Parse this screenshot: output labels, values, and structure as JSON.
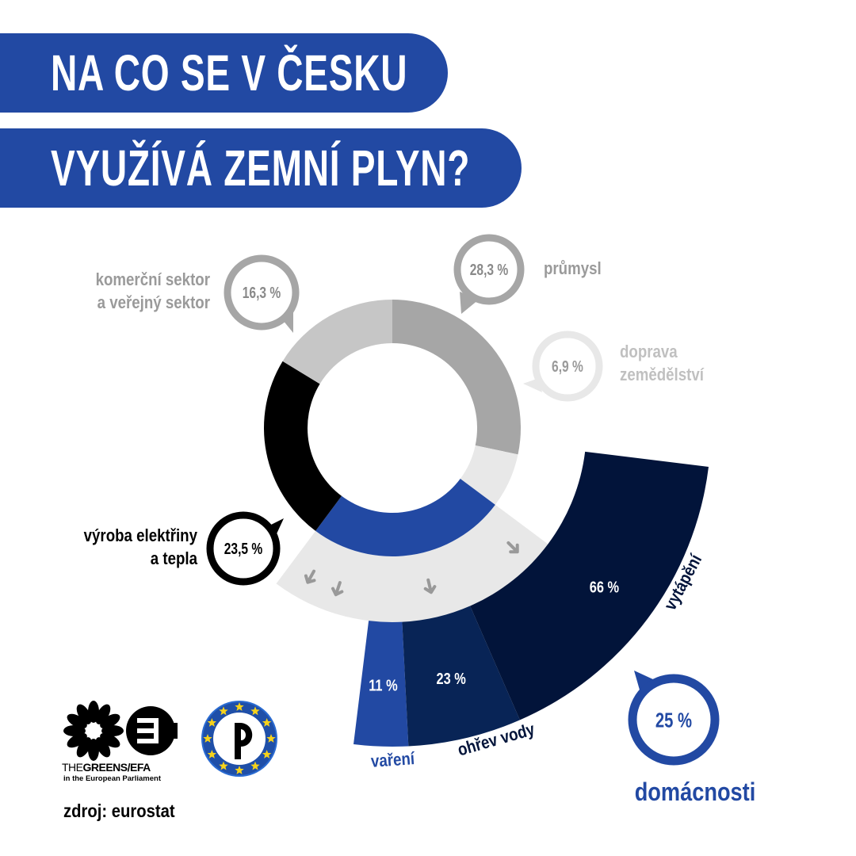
{
  "title": {
    "line1": "NA CO SE V ČESKU",
    "line2": "VYUŽÍVÁ ZEMNÍ PLYN?"
  },
  "chart_data": [
    {
      "type": "pie",
      "variant": "donut",
      "categories": [
        "průmysl",
        "doprava zemědělství",
        "domácnosti",
        "výroba elektřiny a tepla",
        "komerční sektor a veřejný sektor"
      ],
      "values": [
        28.3,
        6.9,
        25,
        23.5,
        16.3
      ],
      "value_labels": [
        "28,3 %",
        "6,9 %",
        "25 %",
        "23,5 %",
        "16,3 %"
      ],
      "label_lines": [
        [
          "průmysl"
        ],
        [
          "doprava",
          "zemědělství"
        ],
        [
          "domácnosti"
        ],
        [
          "výroba elektřiny",
          "a tepla"
        ],
        [
          "komerční sektor",
          "a veřejný sektor"
        ]
      ],
      "colors": [
        "#a6a6a6",
        "#e8e8e8",
        "#2249a3",
        "#000000",
        "#c6c6c6"
      ],
      "start_angle_deg": 0,
      "direction": "clockwise"
    },
    {
      "type": "pie",
      "variant": "fan-breakdown",
      "parent": "domácnosti",
      "categories": [
        "vaření",
        "ohřev vody",
        "vytápění"
      ],
      "values": [
        11,
        23,
        66
      ],
      "value_labels": [
        "11 %",
        "23 %",
        "66 %"
      ],
      "colors": [
        "#2249a3",
        "#082456",
        "#02143a"
      ]
    }
  ],
  "source": "zdroj: eurostat",
  "logos": {
    "greens_line1_a": "THE",
    "greens_line1_b": "GREENS/EFA",
    "greens_line2": "in the European Parliament"
  },
  "colors": {
    "brand_blue": "#2249a3",
    "navy": "#02143a",
    "gray_dark": "#a6a6a6",
    "gray_light": "#c6c6c6",
    "gray_pale": "#e8e8e8"
  }
}
